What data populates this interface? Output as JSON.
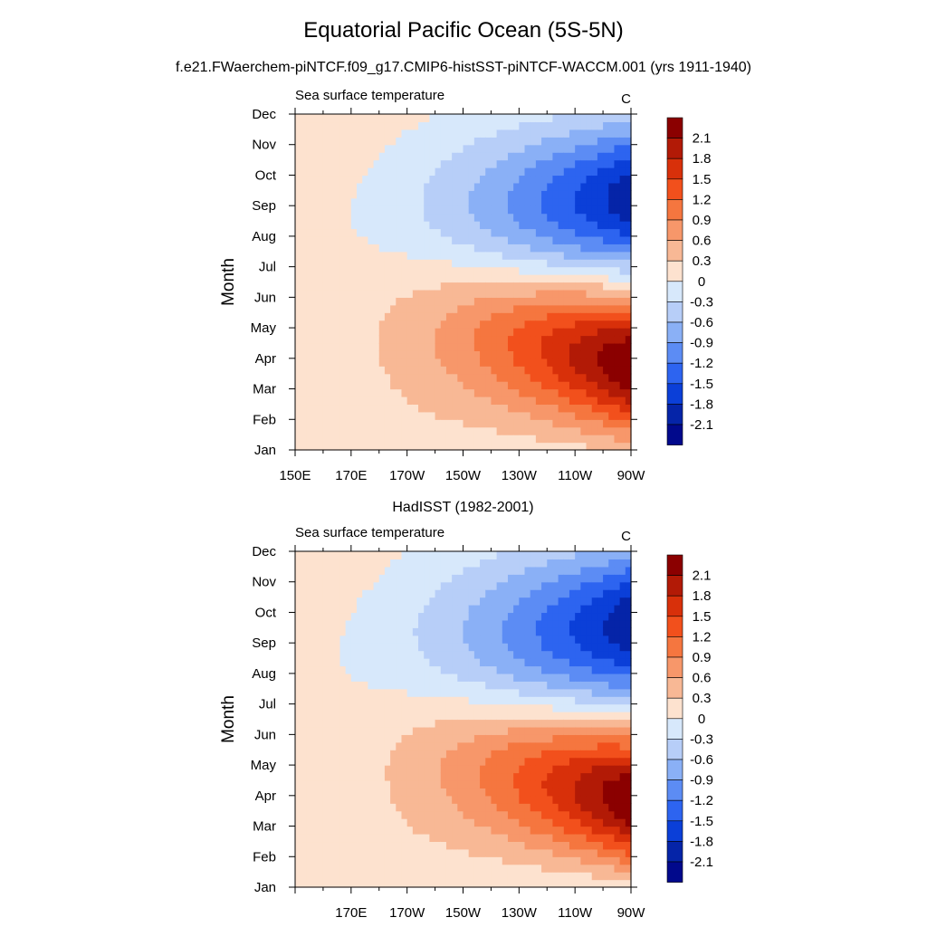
{
  "figure": {
    "title": "Equatorial Pacific Ocean (5S-5N)",
    "subtitle": "f.e21.FWaerchem-piNTCF.f09_g17.CMIP6-histSST-piNTCF-WACCM.001 (yrs 1911-1940)"
  },
  "colorbar": {
    "labels": [
      "2.1",
      "1.8",
      "1.5",
      "1.2",
      "0.9",
      "0.6",
      "0.3",
      "0",
      "-0.3",
      "-0.6",
      "-0.9",
      "-1.2",
      "-1.5",
      "-1.8",
      "-2.1"
    ],
    "colors": [
      "#8b0000",
      "#b21a06",
      "#d8300a",
      "#f2501c",
      "#f5763f",
      "#f7976a",
      "#f8b895",
      "#fde2cf",
      "#d7e8fb",
      "#b7cef8",
      "#8ab0f6",
      "#5c8cf4",
      "#2d64f0",
      "#0b3fd8",
      "#0524a8",
      "#01098c"
    ]
  },
  "chart_data": [
    {
      "type": "heatmap",
      "panel_title": "",
      "left_string": "Sea surface temperature",
      "right_string": "C",
      "ylabel": "Month",
      "xlabel": "",
      "x_tick_labels": [
        "150E",
        "170E",
        "170W",
        "150W",
        "130W",
        "110W",
        "90W"
      ],
      "y_tick_labels": [
        "Jan",
        "Feb",
        "Mar",
        "Apr",
        "May",
        "Jun",
        "Jul",
        "Aug",
        "Sep",
        "Oct",
        "Nov",
        "Dec"
      ],
      "x": [
        150,
        155,
        160,
        165,
        170,
        175,
        180,
        185,
        190,
        195,
        200,
        205,
        210,
        215,
        220,
        225,
        230,
        235,
        240,
        245,
        250,
        255,
        260,
        265,
        270
      ],
      "y": [
        1,
        2,
        3,
        4,
        5,
        6,
        7,
        8,
        9,
        10,
        11,
        12
      ],
      "params": {
        "mt": 0.15,
        "mp": 3.8,
        "mw": 1.0,
        "ct": -0.1,
        "cp": 9.3,
        "cw": 1.7,
        "wg": 0.3
      },
      "values_note": ""
    },
    {
      "type": "heatmap",
      "panel_title": "HadISST (1982-2001)",
      "left_string": "Sea surface temperature",
      "right_string": "C",
      "ylabel": "Month",
      "xlabel": "",
      "x_tick_labels": [
        "",
        "170E",
        "170W",
        "150W",
        "130W",
        "110W",
        "90W"
      ],
      "y_tick_labels": [
        "Jan",
        "Feb",
        "Mar",
        "Apr",
        "May",
        "Jun",
        "Jul",
        "Aug",
        "Sep",
        "Oct",
        "Nov",
        "Dec"
      ],
      "x": [
        150,
        155,
        160,
        165,
        170,
        175,
        180,
        185,
        190,
        195,
        200,
        205,
        210,
        215,
        220,
        225,
        230,
        235,
        240,
        245,
        250,
        255,
        260,
        265,
        270
      ],
      "y": [
        1,
        2,
        3,
        4,
        5,
        6,
        7,
        8,
        9,
        10,
        11,
        12
      ],
      "params": {
        "mt": 0.0,
        "mp": 3.9,
        "mw": 1.0,
        "ct": 0.0,
        "cp": 9.6,
        "cw": 1.8,
        "wg": 0.35
      },
      "values_note": ""
    }
  ]
}
